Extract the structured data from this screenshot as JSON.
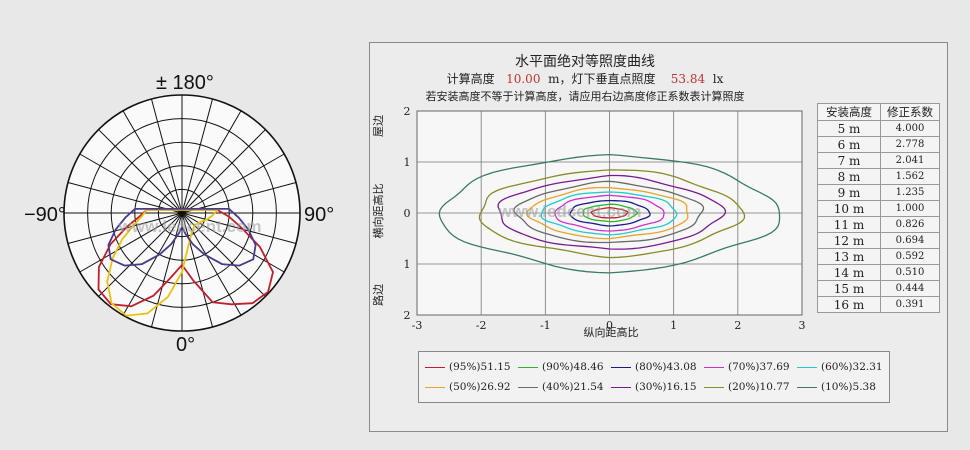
{
  "polar": {
    "label_top": "± 180°",
    "label_left": "−90°",
    "label_right": "90°",
    "label_bottom": "0°",
    "watermark": "www.ledcent.com",
    "curves": [
      {
        "color": "#c0202a",
        "r": [
          0.3,
          0.36,
          0.48,
          0.66,
          0.84,
          0.96,
          0.98,
          0.9,
          0.74,
          0.55,
          0.44,
          0.58,
          0.8,
          0.88,
          0.97,
          0.99,
          0.92,
          0.72,
          0.52,
          0.4,
          0.3
        ]
      },
      {
        "color": "#e9c20f",
        "r": [
          0.3,
          0.34,
          0.42,
          0.55,
          0.7,
          0.86,
          0.97,
          0.99,
          0.9,
          0.72,
          0.5,
          0.3,
          0.22,
          0.18,
          0.16,
          0.15,
          0.16,
          0.18,
          0.22,
          0.26,
          0.3
        ]
      },
      {
        "color": "#4a3a8c",
        "r": [
          0.4,
          0.48,
          0.58,
          0.68,
          0.72,
          0.66,
          0.55,
          0.4,
          0.28,
          0.18,
          0.12,
          0.18,
          0.28,
          0.4,
          0.55,
          0.66,
          0.72,
          0.68,
          0.58,
          0.48,
          0.4
        ]
      }
    ]
  },
  "chart_data": {
    "type": "contour",
    "title": "水平面绝对等照度曲线",
    "subtitle": {
      "prefix": "计算高度",
      "height": "10.00",
      "mid": "m，灯下垂直点照度",
      "illuminance": "53.84",
      "unit": "lx"
    },
    "note": "若安装高度不等于计算高度，请应用右边高度修正系数表计算照度",
    "xlabel": "纵向距高比",
    "ylabel_top": "屋边",
    "ylabel_mid": "横向距高比",
    "ylabel_bottom": "路边",
    "xlim": [
      -3,
      3
    ],
    "ylim": [
      -2,
      2
    ],
    "xticks": [
      "-3",
      "-2",
      "-1",
      "0",
      "1",
      "2",
      "3"
    ],
    "yticks": [
      "2",
      "1",
      "0",
      "1",
      "2"
    ],
    "grid": true,
    "series": [
      {
        "label": "(95%)51.15",
        "color": "#c0202a",
        "a": 0.28,
        "b": 0.1
      },
      {
        "label": "(90%)48.46",
        "color": "#2bb52b",
        "a": 0.42,
        "b": 0.17
      },
      {
        "label": "(80%)43.08",
        "color": "#1b1b8c",
        "a": 0.62,
        "b": 0.25
      },
      {
        "label": "(70%)37.69",
        "color": "#cc33cc",
        "a": 0.85,
        "b": 0.35
      },
      {
        "label": "(60%)32.31",
        "color": "#22cccc",
        "a": 1.05,
        "b": 0.42
      },
      {
        "label": "(50%)26.92",
        "color": "#e6a52a",
        "a": 1.25,
        "b": 0.5
      },
      {
        "label": "(40%)21.54",
        "color": "#6a6a6a",
        "a": 1.45,
        "b": 0.6
      },
      {
        "label": "(30%)16.15",
        "color": "#7a1b8c",
        "a": 1.75,
        "b": 0.72
      },
      {
        "label": "(20%)10.77",
        "color": "#8a8a2a",
        "a": 2.05,
        "b": 0.86
      },
      {
        "label": "(10%)5.38",
        "color": "#3a7a6a",
        "a": 2.65,
        "b": 1.16
      }
    ],
    "correction_table": {
      "headers": [
        "安装高度",
        "修正系数"
      ],
      "rows": [
        [
          "5 m",
          "4.000"
        ],
        [
          "6 m",
          "2.778"
        ],
        [
          "7 m",
          "2.041"
        ],
        [
          "8 m",
          "1.562"
        ],
        [
          "9 m",
          "1.235"
        ],
        [
          "10 m",
          "1.000"
        ],
        [
          "11 m",
          "0.826"
        ],
        [
          "12 m",
          "0.694"
        ],
        [
          "13 m",
          "0.592"
        ],
        [
          "14 m",
          "0.510"
        ],
        [
          "15 m",
          "0.444"
        ],
        [
          "16 m",
          "0.391"
        ]
      ]
    },
    "watermark": "www.ledcent.com"
  }
}
